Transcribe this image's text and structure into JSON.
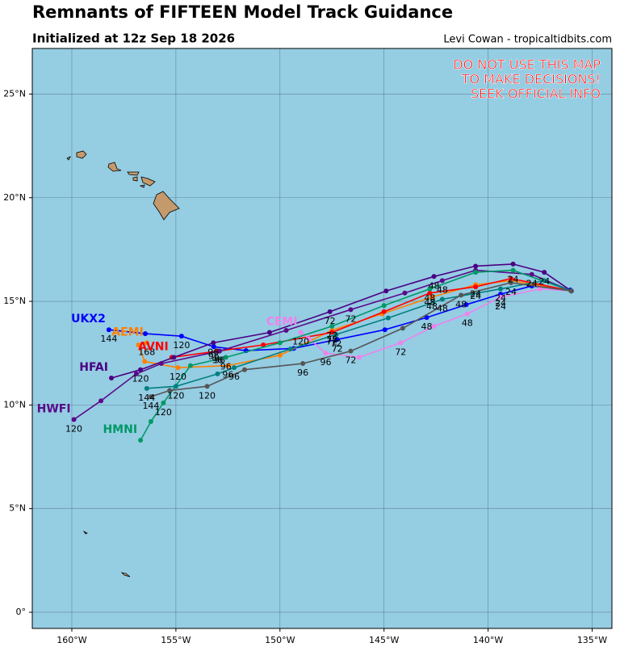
{
  "chart_data": {
    "type": "track-map",
    "title": "Remnants of FIFTEEN Model Track Guidance",
    "subtitle": "Initialized at 12z Sep 18 2026",
    "credit": "Levi Cowan - tropicaltidbits.com",
    "warning": [
      "DO NOT USE THIS MAP",
      "TO MAKE DECISIONS!",
      "SEEK OFFICIAL INFO"
    ],
    "xlim": [
      -161.9,
      -134.05
    ],
    "ylim": [
      -0.78,
      27.2
    ],
    "xticks": [
      {
        "value": -160,
        "label": "160°W"
      },
      {
        "value": -155,
        "label": "155°W"
      },
      {
        "value": -150,
        "label": "150°W"
      },
      {
        "value": -145,
        "label": "145°W"
      },
      {
        "value": -140,
        "label": "140°W"
      },
      {
        "value": -135,
        "label": "135°W"
      }
    ],
    "yticks": [
      {
        "value": 0,
        "label": "0°"
      },
      {
        "value": 5,
        "label": "5°N"
      },
      {
        "value": 10,
        "label": "10°N"
      },
      {
        "value": 15,
        "label": "15°N"
      },
      {
        "value": 20,
        "label": "20°N"
      },
      {
        "value": 25,
        "label": "25°N"
      }
    ],
    "grid": true,
    "series": [
      {
        "name": "UKX2",
        "color": "#0000ff",
        "x": [
          -136.05,
          -137.9,
          -139.4,
          -141.05,
          -142.95,
          -144.96,
          -147.25,
          -149.34,
          -151.63,
          -153.18,
          -154.73,
          -156.47,
          -158.22
        ],
        "y": [
          15.55,
          15.74,
          15.35,
          14.84,
          14.22,
          13.63,
          13.16,
          12.73,
          12.62,
          12.81,
          13.32,
          13.44,
          13.63
        ],
        "hours": [
          null,
          null,
          24,
          null,
          48,
          null,
          72,
          null,
          null,
          96,
          120,
          null,
          144
        ]
      },
      {
        "name": "AEMI",
        "color": "#ff8000",
        "x": [
          -136.0,
          -138.9,
          -140.6,
          -142.7,
          -145.1,
          -147.5,
          -150.0,
          -152.5,
          -154.9,
          -156.5,
          -156.8,
          -156.4
        ],
        "y": [
          15.5,
          16.0,
          15.8,
          15.2,
          14.4,
          13.6,
          12.4,
          11.9,
          11.8,
          12.1,
          12.9,
          13.0
        ],
        "hours": [
          null,
          null,
          24,
          48,
          null,
          72,
          null,
          96,
          120,
          null,
          null,
          168
        ]
      },
      {
        "name": "AVNI",
        "color": "#ff0000",
        "x": [
          -136.0,
          -138.9,
          -140.6,
          -142.8,
          -145.0,
          -147.5,
          -150.8,
          -153.0,
          -155.2
        ],
        "y": [
          15.5,
          16.1,
          15.7,
          15.4,
          14.5,
          13.5,
          12.9,
          12.6,
          12.3
        ],
        "hours": [
          null,
          null,
          24,
          48,
          null,
          72,
          null,
          96,
          null
        ]
      },
      {
        "name": "CEMI",
        "color": "#ee82ee",
        "x": [
          -136.0,
          -137.5,
          -139.4,
          -141.0,
          -142.6,
          -144.2,
          -146.2,
          -147.8,
          -148.6,
          -149.0
        ],
        "y": [
          15.5,
          15.6,
          15.2,
          14.4,
          13.8,
          13.0,
          12.3,
          12.5,
          13.2,
          13.5
        ],
        "hours": [
          null,
          null,
          24,
          48,
          null,
          72,
          null,
          96,
          null,
          120
        ]
      },
      {
        "name": "HFAI",
        "color": "#4b0082",
        "x": [
          -136.0,
          -137.3,
          -138.8,
          -140.6,
          -142.6,
          -144.9,
          -147.6,
          -150.5,
          -153.2,
          -155.1,
          -156.7,
          -158.1
        ],
        "y": [
          15.5,
          16.4,
          16.8,
          16.7,
          16.2,
          15.5,
          14.5,
          13.5,
          13.0,
          12.3,
          11.7,
          11.3
        ],
        "hours": [
          null,
          24,
          null,
          null,
          48,
          null,
          72,
          null,
          96,
          null,
          120,
          null
        ]
      },
      {
        "name": "HWFI",
        "color": "#5a0a8a",
        "x": [
          -136.0,
          -137.9,
          -140.6,
          -142.2,
          -144.0,
          -146.6,
          -149.7,
          -152.9,
          -155.7,
          -156.9,
          -158.6,
          -159.9
        ],
        "y": [
          15.5,
          16.3,
          16.5,
          16.0,
          15.4,
          14.6,
          13.6,
          12.6,
          12.0,
          11.5,
          10.2,
          9.3
        ],
        "hours": [
          null,
          24,
          null,
          48,
          null,
          72,
          null,
          96,
          null,
          null,
          null,
          120
        ]
      },
      {
        "name": "HMNI",
        "color": "#009966",
        "x": [
          -136.0,
          -138.8,
          -140.6,
          -142.8,
          -145.0,
          -147.5,
          -150.0,
          -152.6,
          -154.3,
          -155.6,
          -156.2,
          -156.7
        ],
        "y": [
          15.5,
          16.5,
          16.4,
          15.6,
          14.8,
          13.8,
          13.0,
          12.3,
          11.9,
          10.1,
          9.2,
          8.3
        ],
        "hours": [
          null,
          24,
          null,
          48,
          null,
          72,
          null,
          96,
          null,
          120,
          null,
          null
        ]
      },
      {
        "color": "#008080",
        "x": [
          -136.0,
          -137.3,
          -139.4,
          -142.2,
          -144.8,
          -147.3,
          -149.5,
          -152.2,
          -153.0,
          -155.0,
          -156.4
        ],
        "y": [
          15.5,
          16.0,
          15.6,
          15.1,
          14.2,
          13.4,
          12.7,
          11.8,
          11.5,
          10.9,
          10.8
        ],
        "hours": [
          null,
          null,
          24,
          48,
          null,
          72,
          null,
          96,
          null,
          120,
          144
        ]
      },
      {
        "color": "#555555",
        "x": [
          -136.0,
          -138.9,
          -141.3,
          -144.1,
          -146.6,
          -148.9,
          -151.7,
          -153.5,
          -155.3,
          -156.2
        ],
        "y": [
          15.5,
          15.9,
          15.3,
          13.7,
          12.6,
          12.0,
          11.7,
          10.9,
          10.7,
          10.4
        ],
        "hours": [
          null,
          24,
          48,
          null,
          72,
          96,
          null,
          120,
          null,
          144
        ]
      }
    ]
  }
}
